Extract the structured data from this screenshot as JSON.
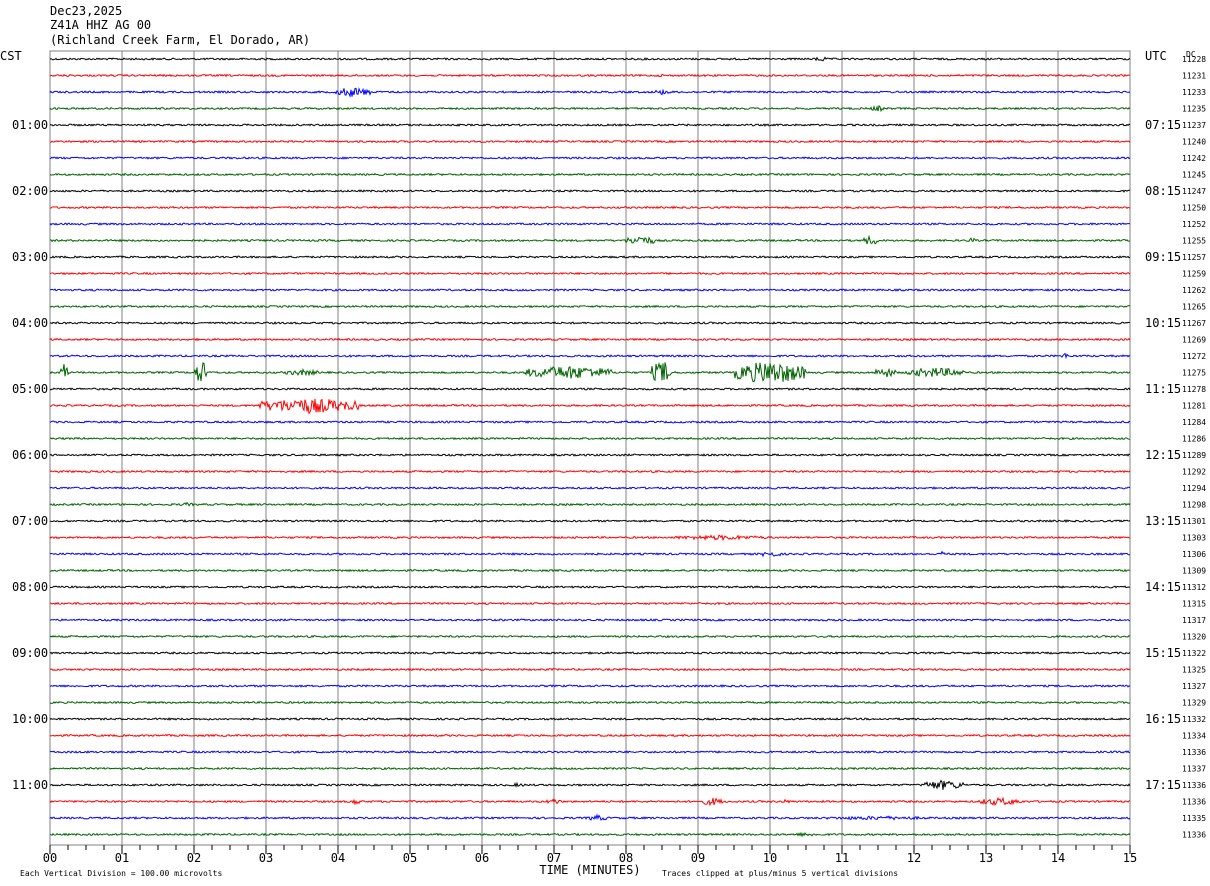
{
  "header": {
    "date": "Dec23,2025",
    "station": "Z41A HHZ AG 00",
    "location": "(Richland Creek Farm, El Dorado, AR)"
  },
  "footer": {
    "division_note": "Each Vertical Division =  100.00 microvolts",
    "xaxis_title": "TIME (MINUTES)",
    "clip_note": "Traces clipped at plus/minus 5 vertical divisions"
  },
  "chart_data": {
    "type": "line",
    "title": "",
    "xlabel": "TIME (MINUTES)",
    "xlim": [
      0,
      15
    ],
    "x_ticks": [
      "00",
      "01",
      "02",
      "03",
      "04",
      "05",
      "06",
      "07",
      "08",
      "09",
      "10",
      "11",
      "12",
      "13",
      "14",
      "15"
    ],
    "left_axis_label": "CST",
    "right_axis_label": "UTC",
    "dc_label": "DC",
    "trace_colors": [
      "#000000",
      "#ff0000",
      "#0000ff",
      "#006400"
    ],
    "left_hour_labels": [
      "01:00",
      "02:00",
      "03:00",
      "04:00",
      "05:00",
      "06:00",
      "07:00",
      "08:00",
      "09:00",
      "10:00",
      "11:00"
    ],
    "right_hour_labels": [
      "07:15",
      "08:15",
      "09:15",
      "10:15",
      "11:15",
      "12:15",
      "13:15",
      "14:15",
      "15:15",
      "16:15",
      "17:15"
    ],
    "dc_values": [
      "11228",
      "11231",
      "11233",
      "11235",
      "11237",
      "11240",
      "11242",
      "11245",
      "11247",
      "11250",
      "11252",
      "11255",
      "11257",
      "11259",
      "11262",
      "11265",
      "11267",
      "11269",
      "11272",
      "11275",
      "11278",
      "11281",
      "11284",
      "11286",
      "11289",
      "11292",
      "11294",
      "11298",
      "11301",
      "11303",
      "11306",
      "11309",
      "11312",
      "11315",
      "11317",
      "11320",
      "11322",
      "11325",
      "11327",
      "11329",
      "11332",
      "11334",
      "11336",
      "11337",
      "11336",
      "11336",
      "11335",
      "11336"
    ],
    "events": [
      {
        "trace": 0,
        "minute": 10.7,
        "amp": 3,
        "dur": 0.15,
        "color_index": 0
      },
      {
        "trace": 1,
        "minute": 0.25,
        "amp": 1.5,
        "dur": 0.1,
        "color_index": 1
      },
      {
        "trace": 1,
        "minute": 8.5,
        "amp": 1.5,
        "dur": 0.15,
        "color_index": 1
      },
      {
        "trace": 2,
        "minute": 4.2,
        "amp": 5,
        "dur": 0.5,
        "color_index": 2
      },
      {
        "trace": 2,
        "minute": 8.5,
        "amp": 2.5,
        "dur": 0.3,
        "color_index": 2
      },
      {
        "trace": 3,
        "minute": 11.5,
        "amp": 3,
        "dur": 0.2,
        "color_index": 3
      },
      {
        "trace": 11,
        "minute": 8.2,
        "amp": 5,
        "dur": 0.4,
        "color_index": 3
      },
      {
        "trace": 11,
        "minute": 11.4,
        "amp": 5,
        "dur": 0.2,
        "color_index": 3
      },
      {
        "trace": 11,
        "minute": 12.8,
        "amp": 3,
        "dur": 0.1,
        "color_index": 3
      },
      {
        "trace": 18,
        "minute": 14.1,
        "amp": 3,
        "dur": 0.1,
        "color_index": 2
      },
      {
        "trace": 19,
        "minute": 0.2,
        "amp": 10,
        "dur": 0.1,
        "color_index": 3
      },
      {
        "trace": 19,
        "minute": 2.1,
        "amp": 12,
        "dur": 0.2,
        "color_index": 3
      },
      {
        "trace": 19,
        "minute": 3.5,
        "amp": 3,
        "dur": 0.5,
        "color_index": 3
      },
      {
        "trace": 19,
        "minute": 7.2,
        "amp": 7,
        "dur": 1.2,
        "color_index": 3
      },
      {
        "trace": 19,
        "minute": 8.5,
        "amp": 12,
        "dur": 0.3,
        "color_index": 3
      },
      {
        "trace": 19,
        "minute": 10.0,
        "amp": 12,
        "dur": 1.0,
        "color_index": 3
      },
      {
        "trace": 19,
        "minute": 11.6,
        "amp": 5,
        "dur": 0.3,
        "color_index": 3
      },
      {
        "trace": 19,
        "minute": 12.3,
        "amp": 5,
        "dur": 0.8,
        "color_index": 3
      },
      {
        "trace": 21,
        "minute": 3.6,
        "amp": 8,
        "dur": 1.4,
        "color_index": 1
      },
      {
        "trace": 27,
        "minute": 1.9,
        "amp": 2,
        "dur": 0.2,
        "color_index": 3
      },
      {
        "trace": 29,
        "minute": 9.3,
        "amp": 2.5,
        "dur": 1.3,
        "color_index": 1
      },
      {
        "trace": 30,
        "minute": 10.0,
        "amp": 3,
        "dur": 0.3,
        "color_index": 2
      },
      {
        "trace": 30,
        "minute": 12.4,
        "amp": 5,
        "dur": 0.05,
        "color_index": 2
      },
      {
        "trace": 44,
        "minute": 6.5,
        "amp": 2,
        "dur": 0.2,
        "color_index": 0
      },
      {
        "trace": 44,
        "minute": 12.4,
        "amp": 5,
        "dur": 0.6,
        "color_index": 0
      },
      {
        "trace": 45,
        "minute": 4.25,
        "amp": 4,
        "dur": 0.1,
        "color_index": 1
      },
      {
        "trace": 45,
        "minute": 7.0,
        "amp": 3,
        "dur": 0.2,
        "color_index": 1
      },
      {
        "trace": 45,
        "minute": 9.2,
        "amp": 4,
        "dur": 0.3,
        "color_index": 1
      },
      {
        "trace": 45,
        "minute": 10.2,
        "amp": 2,
        "dur": 0.2,
        "color_index": 1
      },
      {
        "trace": 45,
        "minute": 13.2,
        "amp": 4,
        "dur": 0.6,
        "color_index": 1
      },
      {
        "trace": 46,
        "minute": 7.6,
        "amp": 3,
        "dur": 0.3,
        "color_index": 2
      },
      {
        "trace": 46,
        "minute": 11.5,
        "amp": 2,
        "dur": 1.5,
        "color_index": 2
      },
      {
        "trace": 47,
        "minute": 10.5,
        "amp": 2,
        "dur": 0.4,
        "color_index": 3
      }
    ]
  }
}
